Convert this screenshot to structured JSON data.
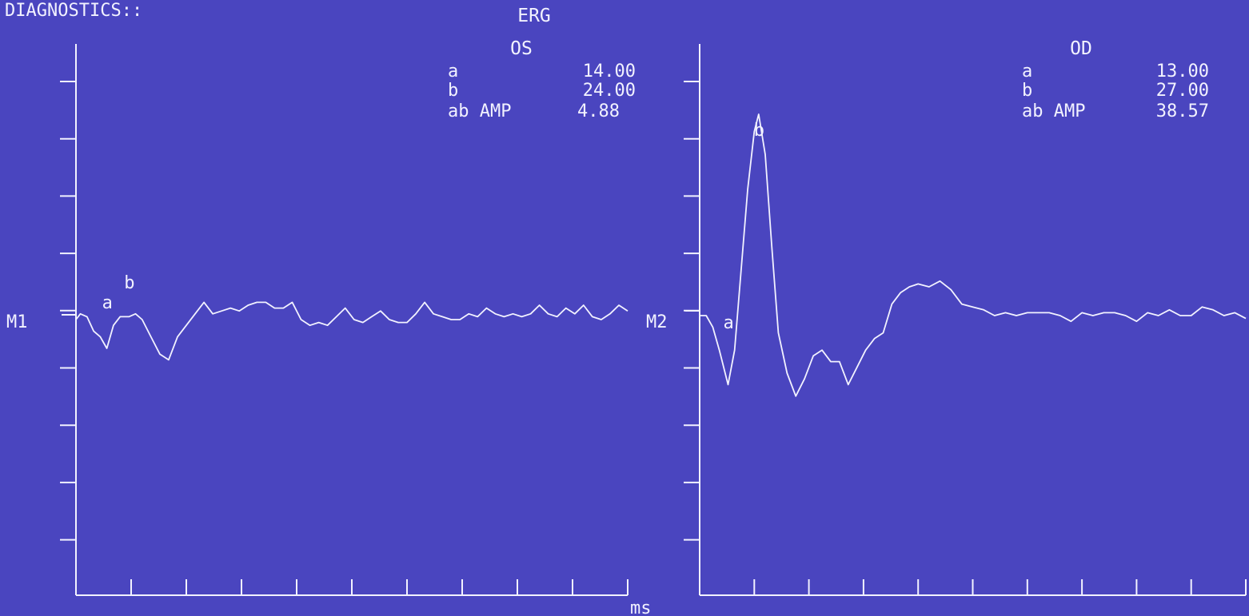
{
  "header": {
    "top_left": "DIAGNOSTICS::",
    "title": "ERG"
  },
  "x_unit": "ms",
  "chart_data": [
    {
      "type": "line",
      "panel": "OS",
      "trace_label": "M1",
      "readout": [
        {
          "label": "a",
          "value": "14.00"
        },
        {
          "label": "b",
          "value": "24.00"
        },
        {
          "label": "ab AMP",
          "value": "4.88"
        }
      ],
      "x_ticks": 10,
      "y_ticks": 9,
      "markers": [
        {
          "label": "a",
          "x": 14,
          "y": -0.5
        },
        {
          "label": "b",
          "x": 24,
          "y": 0.05
        }
      ],
      "series": [
        {
          "x": [
            0,
            2,
            5,
            8,
            11,
            14,
            17,
            20,
            24,
            27,
            30,
            34,
            38,
            42,
            46,
            50,
            54,
            58,
            62,
            66,
            70,
            74,
            78,
            82,
            86,
            90,
            94,
            98,
            102,
            106,
            110,
            114,
            118,
            122,
            126,
            130,
            134,
            138,
            142,
            146,
            150,
            154,
            158,
            162,
            166,
            170,
            174,
            178,
            182,
            186,
            190,
            194,
            198,
            202,
            206,
            210,
            214,
            218,
            222,
            226,
            230,
            234,
            238,
            242,
            246,
            250
          ],
          "values": [
            0,
            0.1,
            0.05,
            -0.2,
            -0.3,
            -0.5,
            -0.1,
            0.05,
            0.05,
            0.1,
            0,
            -0.3,
            -0.6,
            -0.7,
            -0.3,
            -0.1,
            0.1,
            0.3,
            0.1,
            0.15,
            0.2,
            0.15,
            0.25,
            0.3,
            0.3,
            0.2,
            0.2,
            0.3,
            0,
            -0.1,
            -0.05,
            -0.1,
            0.05,
            0.2,
            0,
            -0.05,
            0.05,
            0.15,
            0,
            -0.05,
            -0.05,
            0.1,
            0.3,
            0.1,
            0.05,
            0,
            0,
            0.1,
            0.05,
            0.2,
            0.1,
            0.05,
            0.1,
            0.05,
            0.1,
            0.25,
            0.1,
            0.05,
            0.2,
            0.1,
            0.25,
            0.05,
            0,
            0.1,
            0.25,
            0.15
          ]
        }
      ]
    },
    {
      "type": "line",
      "panel": "OD",
      "trace_label": "M2",
      "readout": [
        {
          "label": "a",
          "value": "13.00"
        },
        {
          "label": "b",
          "value": "27.00"
        },
        {
          "label": "ab AMP",
          "value": "38.57"
        }
      ],
      "x_ticks": 10,
      "y_ticks": 9,
      "markers": [
        {
          "label": "a",
          "x": 13,
          "y": -1.2
        },
        {
          "label": "b",
          "x": 27,
          "y": 3.5
        }
      ],
      "series": [
        {
          "x": [
            0,
            3,
            6,
            9,
            13,
            16,
            19,
            22,
            25,
            27,
            30,
            33,
            36,
            40,
            44,
            48,
            52,
            56,
            60,
            64,
            68,
            72,
            76,
            80,
            84,
            88,
            92,
            96,
            100,
            105,
            110,
            115,
            120,
            125,
            130,
            135,
            140,
            145,
            150,
            155,
            160,
            165,
            170,
            175,
            180,
            185,
            190,
            195,
            200,
            205,
            210,
            215,
            220,
            225,
            230,
            235,
            240,
            245,
            250
          ],
          "values": [
            0,
            0,
            -0.2,
            -0.6,
            -1.2,
            -0.6,
            0.8,
            2.2,
            3.2,
            3.5,
            2.8,
            1.2,
            -0.3,
            -1.0,
            -1.4,
            -1.1,
            -0.7,
            -0.6,
            -0.8,
            -0.8,
            -1.2,
            -0.9,
            -0.6,
            -0.4,
            -0.3,
            0.2,
            0.4,
            0.5,
            0.55,
            0.5,
            0.6,
            0.45,
            0.2,
            0.15,
            0.1,
            0.0,
            0.05,
            0.0,
            0.05,
            0.05,
            0.05,
            0.0,
            -0.1,
            0.05,
            0.0,
            0.05,
            0.05,
            0.0,
            -0.1,
            0.05,
            0.0,
            0.1,
            0.0,
            0.0,
            0.15,
            0.1,
            0.0,
            0.05,
            -0.05
          ]
        }
      ]
    }
  ]
}
